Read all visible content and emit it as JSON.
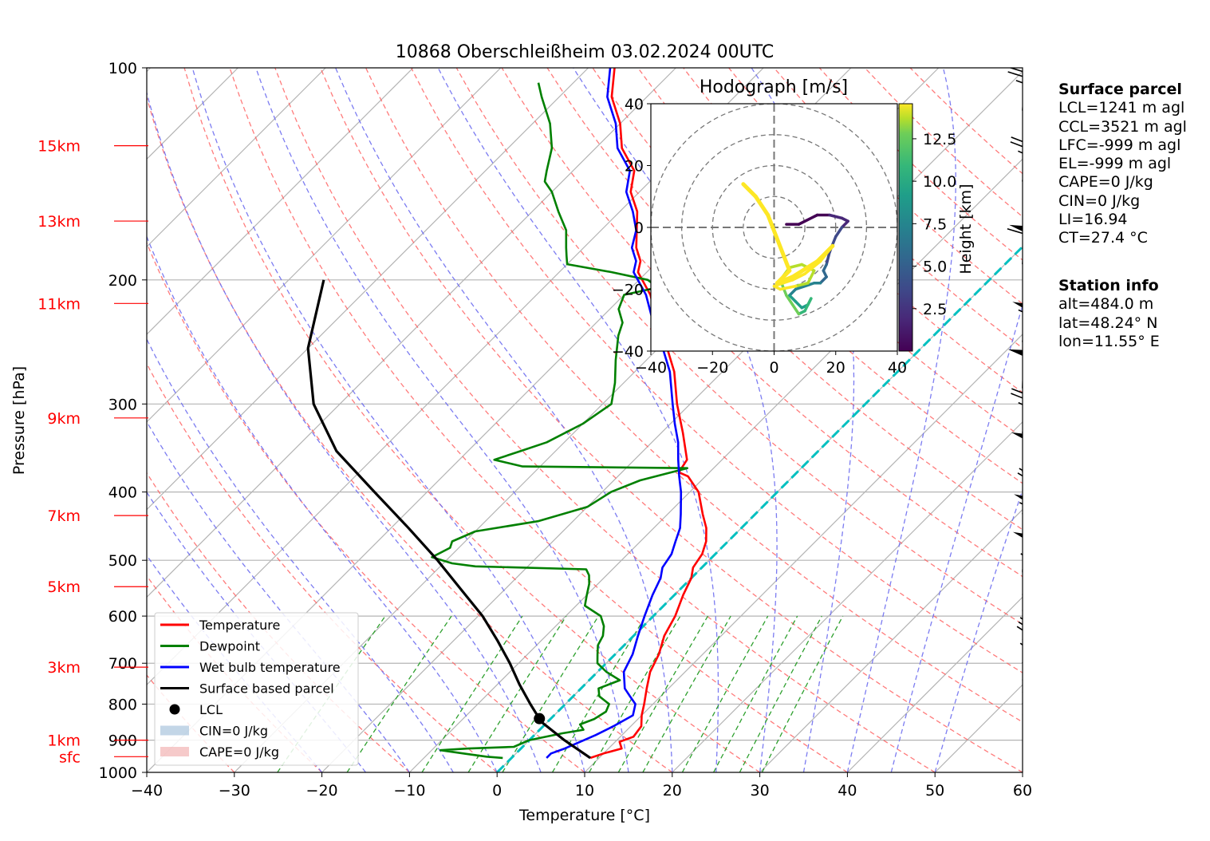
{
  "title": "10868 Oberschleißheim 03.02.2024 00UTC",
  "chart_data": {
    "type": "line",
    "xlabel": "Temperature [°C]",
    "ylabel": "Pressure [hPa]",
    "xlim": [
      -40,
      60
    ],
    "ylim_hPa": [
      1000,
      100
    ],
    "y_scale": "log",
    "skew": "isotherms skewed 45°",
    "xticks": [
      "−40",
      "−30",
      "−20",
      "−10",
      "0",
      "10",
      "20",
      "30",
      "40",
      "50",
      "60"
    ],
    "yticks": [
      "100",
      "200",
      "300",
      "400",
      "500",
      "600",
      "700",
      "800",
      "900",
      "1000"
    ],
    "height_labels": [
      {
        "label": "15km",
        "p": 129
      },
      {
        "label": "13km",
        "p": 165
      },
      {
        "label": "11km",
        "p": 216
      },
      {
        "label": "9km",
        "p": 314
      },
      {
        "label": "7km",
        "p": 432
      },
      {
        "label": "5km",
        "p": 545
      },
      {
        "label": "3km",
        "p": 709
      },
      {
        "label": "1km",
        "p": 900
      },
      {
        "label": "sfc",
        "p": 950
      }
    ],
    "legend_position": "lower-left",
    "legend": [
      {
        "label": "Temperature",
        "type": "line",
        "color": "#ff0000"
      },
      {
        "label": "Dewpoint",
        "type": "line",
        "color": "#008000"
      },
      {
        "label": "Wet bulb temperature",
        "type": "line",
        "color": "#0000ff"
      },
      {
        "label": "Surface based parcel",
        "type": "line",
        "color": "#000000"
      },
      {
        "label": "LCL",
        "type": "dot",
        "color": "#000000"
      },
      {
        "label": "CIN=0 J/kg",
        "type": "patch",
        "color": "#a9c5dd"
      },
      {
        "label": "CAPE=0 J/kg",
        "type": "patch",
        "color": "#f2b3b3"
      }
    ],
    "series": [
      {
        "name": "Temperature",
        "color": "#ff0000",
        "points": [
          [
            954,
            9.0
          ],
          [
            940,
            10.0
          ],
          [
            925,
            11.5
          ],
          [
            905,
            10.5
          ],
          [
            890,
            11.5
          ],
          [
            860,
            11.2
          ],
          [
            830,
            10.0
          ],
          [
            800,
            9.0
          ],
          [
            760,
            7.5
          ],
          [
            720,
            6.0
          ],
          [
            680,
            5.0
          ],
          [
            640,
            3.5
          ],
          [
            600,
            2.5
          ],
          [
            560,
            1.0
          ],
          [
            530,
            0.0
          ],
          [
            512,
            -1.0
          ],
          [
            490,
            -1.5
          ],
          [
            470,
            -2.5
          ],
          [
            450,
            -4.0
          ],
          [
            430,
            -6.0
          ],
          [
            400,
            -9.0
          ],
          [
            380,
            -12.0
          ],
          [
            375,
            -13.5
          ],
          [
            360,
            -14.0
          ],
          [
            330,
            -17.5
          ],
          [
            300,
            -21.5
          ],
          [
            270,
            -25.5
          ],
          [
            250,
            -29.0
          ],
          [
            230,
            -33.0
          ],
          [
            210,
            -37.0
          ],
          [
            195,
            -41.0
          ],
          [
            188,
            -42.0
          ],
          [
            180,
            -44.0
          ],
          [
            160,
            -48.0
          ],
          [
            150,
            -51.0
          ],
          [
            140,
            -53.0
          ],
          [
            130,
            -57.0
          ],
          [
            120,
            -60.0
          ],
          [
            110,
            -64.0
          ],
          [
            100,
            -67.0
          ]
        ]
      },
      {
        "name": "Dewpoint",
        "color": "#008000",
        "points": [
          [
            954,
            -1.0
          ],
          [
            950,
            -3.0
          ],
          [
            940,
            -6.0
          ],
          [
            930,
            -9.0
          ],
          [
            925,
            -6.0
          ],
          [
            920,
            -1.0
          ],
          [
            900,
            0.0
          ],
          [
            880,
            3.0
          ],
          [
            870,
            5.0
          ],
          [
            855,
            4.0
          ],
          [
            840,
            5.0
          ],
          [
            820,
            5.5
          ],
          [
            800,
            5.0
          ],
          [
            780,
            3.0
          ],
          [
            760,
            2.0
          ],
          [
            740,
            3.5
          ],
          [
            720,
            1.0
          ],
          [
            700,
            -1.0
          ],
          [
            680,
            -2.0
          ],
          [
            660,
            -3.0
          ],
          [
            640,
            -3.5
          ],
          [
            620,
            -4.5
          ],
          [
            600,
            -6.0
          ],
          [
            580,
            -9.0
          ],
          [
            560,
            -10.0
          ],
          [
            540,
            -11.0
          ],
          [
            525,
            -12.0
          ],
          [
            515,
            -13.0
          ],
          [
            510,
            -26.0
          ],
          [
            505,
            -29.0
          ],
          [
            495,
            -32.0
          ],
          [
            480,
            -31.0
          ],
          [
            470,
            -31.5
          ],
          [
            455,
            -30.0
          ],
          [
            440,
            -24.0
          ],
          [
            420,
            -20.0
          ],
          [
            400,
            -19.0
          ],
          [
            385,
            -17.0
          ],
          [
            370,
            -13.0
          ],
          [
            368,
            -32.0
          ],
          [
            360,
            -36.0
          ],
          [
            350,
            -34.0
          ],
          [
            340,
            -32.0
          ],
          [
            320,
            -30.0
          ],
          [
            300,
            -29.0
          ],
          [
            280,
            -31.0
          ],
          [
            260,
            -33.5
          ],
          [
            240,
            -36.0
          ],
          [
            230,
            -37.0
          ],
          [
            220,
            -39.0
          ],
          [
            210,
            -40.0
          ],
          [
            205,
            -37.0
          ],
          [
            200,
            -39.0
          ],
          [
            195,
            -44.0
          ],
          [
            190,
            -50.0
          ],
          [
            185,
            -51.0
          ],
          [
            180,
            -52.0
          ],
          [
            170,
            -54.0
          ],
          [
            160,
            -57.0
          ],
          [
            150,
            -60.0
          ],
          [
            145,
            -62.0
          ],
          [
            140,
            -63.0
          ],
          [
            130,
            -65.0
          ],
          [
            120,
            -68.0
          ],
          [
            110,
            -72.0
          ],
          [
            105,
            -74.0
          ]
        ]
      },
      {
        "name": "Wet bulb temperature",
        "color": "#0000ff",
        "points": [
          [
            954,
            4.0
          ],
          [
            940,
            4.0
          ],
          [
            925,
            5.0
          ],
          [
            905,
            6.0
          ],
          [
            885,
            7.0
          ],
          [
            860,
            8.0
          ],
          [
            830,
            9.0
          ],
          [
            800,
            8.0
          ],
          [
            780,
            6.5
          ],
          [
            760,
            5.0
          ],
          [
            720,
            3.0
          ],
          [
            680,
            2.0
          ],
          [
            640,
            0.5
          ],
          [
            600,
            -1.0
          ],
          [
            560,
            -2.5
          ],
          [
            530,
            -3.5
          ],
          [
            512,
            -4.5
          ],
          [
            490,
            -5.0
          ],
          [
            470,
            -6.0
          ],
          [
            450,
            -7.0
          ],
          [
            430,
            -8.5
          ],
          [
            400,
            -11.0
          ],
          [
            380,
            -13.0
          ],
          [
            360,
            -15.0
          ],
          [
            340,
            -17.0
          ],
          [
            320,
            -19.5
          ],
          [
            300,
            -22.0
          ],
          [
            270,
            -26.0
          ],
          [
            250,
            -29.5
          ],
          [
            230,
            -33.5
          ],
          [
            210,
            -37.5
          ],
          [
            195,
            -41.5
          ],
          [
            188,
            -42.5
          ],
          [
            180,
            -44.5
          ],
          [
            170,
            -46.0
          ],
          [
            160,
            -48.5
          ],
          [
            150,
            -51.5
          ],
          [
            140,
            -53.5
          ],
          [
            130,
            -57.5
          ],
          [
            120,
            -60.5
          ],
          [
            110,
            -64.5
          ],
          [
            100,
            -67.5
          ]
        ]
      },
      {
        "name": "Surface based parcel",
        "color": "#000000",
        "points": [
          [
            954,
            9.0
          ],
          [
            900,
            4.0
          ],
          [
            850,
            -0.5
          ],
          [
            839,
            -1.3
          ],
          [
            800,
            -4.0
          ],
          [
            750,
            -7.5
          ],
          [
            700,
            -11.0
          ],
          [
            650,
            -15.0
          ],
          [
            600,
            -19.5
          ],
          [
            550,
            -25.0
          ],
          [
            500,
            -31.0
          ],
          [
            450,
            -38.0
          ],
          [
            400,
            -46.0
          ],
          [
            350,
            -55.0
          ],
          [
            300,
            -63.0
          ],
          [
            250,
            -70.0
          ],
          [
            200,
            -76.0
          ]
        ]
      }
    ],
    "lcl_point": {
      "p": 839,
      "t": -1.3
    },
    "hodograph": {
      "title": "Hodograph [m/s]",
      "lim": [
        -40,
        40
      ],
      "ticks": [
        "−40",
        "−20",
        "0",
        "20",
        "40"
      ],
      "rings": [
        10,
        20,
        30,
        40
      ],
      "colorbar_label": "Height [km]",
      "colorbar_ticks": [
        "2.5",
        "5.0",
        "7.5",
        "10.0",
        "12.5"
      ],
      "colorbar_range": [
        0,
        15
      ],
      "points": [
        [
          0.2,
          4,
          1
        ],
        [
          0.6,
          8,
          1
        ],
        [
          1.0,
          14,
          4
        ],
        [
          1.4,
          18,
          4
        ],
        [
          1.8,
          22,
          3
        ],
        [
          2.2,
          24,
          2
        ],
        [
          2.6,
          22,
          0
        ],
        [
          3.0,
          20,
          -3
        ],
        [
          3.5,
          18,
          -8
        ],
        [
          4.0,
          17,
          -12
        ],
        [
          4.5,
          16,
          -14
        ],
        [
          5.0,
          17,
          -16
        ],
        [
          5.5,
          15,
          -18
        ],
        [
          6.0,
          13,
          -18
        ],
        [
          6.5,
          7,
          -20
        ],
        [
          7.0,
          5,
          -22
        ],
        [
          7.5,
          7,
          -24
        ],
        [
          8.0,
          9,
          -26
        ],
        [
          8.5,
          11,
          -25
        ],
        [
          9.0,
          12,
          -23
        ],
        [
          9.5,
          10,
          -27
        ],
        [
          10.0,
          8,
          -28
        ],
        [
          10.5,
          6,
          -25
        ],
        [
          11.0,
          4,
          -22
        ],
        [
          11.5,
          2,
          -17
        ],
        [
          12.0,
          5,
          -13
        ],
        [
          12.3,
          9,
          -12
        ],
        [
          12.6,
          13,
          -14
        ],
        [
          13.0,
          11,
          -18
        ],
        [
          13.3,
          7,
          -19
        ],
        [
          13.6,
          2,
          -20
        ],
        [
          13.9,
          0,
          -19
        ],
        [
          14.2,
          6,
          -17
        ],
        [
          14.5,
          10,
          -15
        ],
        [
          14.7,
          15,
          -11
        ],
        [
          14.9,
          19,
          -6
        ],
        [
          15.1,
          14,
          -11
        ],
        [
          15.3,
          6,
          -16
        ],
        [
          15.6,
          1,
          -18
        ],
        [
          15.8,
          5,
          -14
        ],
        [
          16.0,
          -2,
          4
        ],
        [
          16.2,
          -6,
          10
        ],
        [
          16.4,
          -10,
          14
        ]
      ]
    },
    "wind_barbs": [
      {
        "p": 940,
        "u": -10,
        "v": -3
      },
      {
        "p": 900,
        "u": -10,
        "v": 0
      },
      {
        "p": 830,
        "u": -8,
        "v": 9
      },
      {
        "p": 800,
        "u": -6,
        "v": 12
      },
      {
        "p": 770,
        "u": -7,
        "v": 11
      },
      {
        "p": 740,
        "u": -6,
        "v": 13
      },
      {
        "p": 700,
        "u": -5,
        "v": 14
      },
      {
        "p": 660,
        "u": -6,
        "v": 11
      },
      {
        "p": 630,
        "u": -6,
        "v": 10
      },
      {
        "p": 590,
        "u": -5,
        "v": 11
      },
      {
        "p": 560,
        "u": -5,
        "v": 12
      },
      {
        "p": 520,
        "u": -4,
        "v": 25
      },
      {
        "p": 460,
        "u": -5,
        "v": 27
      },
      {
        "p": 430,
        "u": -4,
        "v": 12
      },
      {
        "p": 375,
        "u": -3,
        "v": 25
      },
      {
        "p": 330,
        "u": -2,
        "v": 13
      },
      {
        "p": 285,
        "u": -1,
        "v": 26
      },
      {
        "p": 245,
        "u": -4,
        "v": 27
      },
      {
        "p": 190,
        "u": -2,
        "v": 30
      },
      {
        "p": 145,
        "u": -2,
        "v": 14
      },
      {
        "p": 115,
        "u": -1,
        "v": 13
      }
    ]
  },
  "surface_parcel": {
    "header": "Surface parcel",
    "lines": [
      "LCL=1241 m agl",
      "CCL=3521 m agl",
      "LFC=-999 m agl",
      "EL=-999 m agl",
      "CAPE=0 J/kg",
      "CIN=0 J/kg",
      "LI=16.94",
      "CT=27.4 °C"
    ]
  },
  "station_info": {
    "header": "Station info",
    "lines": [
      "alt=484.0 m",
      "lat=48.24° N",
      "lon=11.55° E"
    ]
  }
}
